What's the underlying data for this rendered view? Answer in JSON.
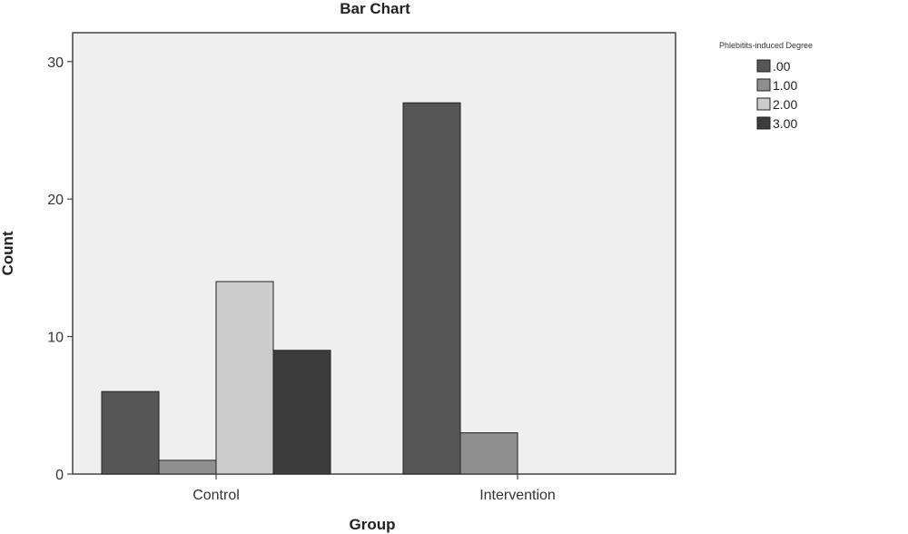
{
  "chart_data": {
    "type": "bar",
    "title": "Bar Chart",
    "xlabel": "Group",
    "ylabel": "Count",
    "categories": [
      "Control",
      "Intervention"
    ],
    "ylim": [
      0,
      30
    ],
    "yticks": [
      0,
      10,
      20,
      30
    ],
    "grid": false,
    "legend_title": "Phlebitits-induced Degree",
    "legend_position": "top-right",
    "series": [
      {
        "name": ".00",
        "values": [
          6,
          27
        ],
        "color": "#565656"
      },
      {
        "name": "1.00",
        "values": [
          1,
          3
        ],
        "color": "#8f8f8f"
      },
      {
        "name": "2.00",
        "values": [
          14,
          0
        ],
        "color": "#cccccc"
      },
      {
        "name": "3.00",
        "values": [
          9,
          0
        ],
        "color": "#3c3c3c"
      }
    ],
    "plot_background": "#efefef"
  }
}
